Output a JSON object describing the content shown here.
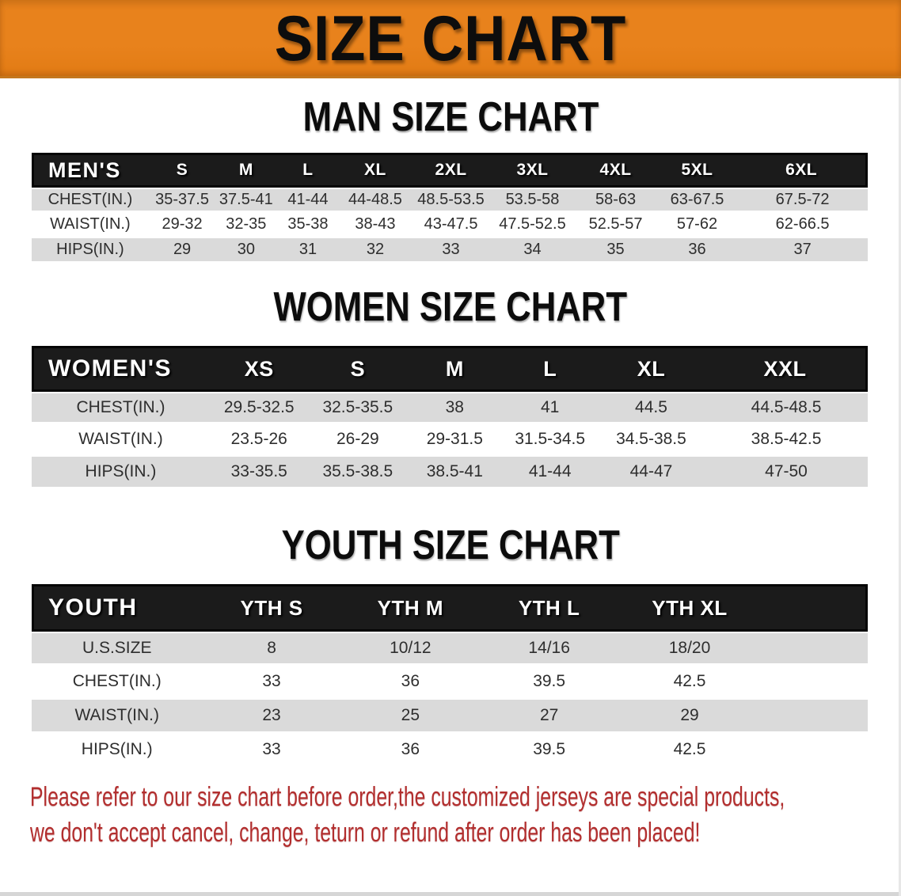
{
  "banner": {
    "title": "SIZE CHART"
  },
  "sections": [
    {
      "id": "men",
      "heading": "MAN SIZE CHART",
      "corner_label": "MEN'S",
      "sizes": [
        "S",
        "M",
        "L",
        "XL",
        "2XL",
        "3XL",
        "4XL",
        "5XL",
        "6XL"
      ],
      "rows": [
        {
          "label": "CHEST(IN.)",
          "values": [
            "35-37.5",
            "37.5-41",
            "41-44",
            "44-48.5",
            "48.5-53.5",
            "53.5-58",
            "58-63",
            "63-67.5",
            "67.5-72"
          ]
        },
        {
          "label": "WAIST(IN.)",
          "values": [
            "29-32",
            "32-35",
            "35-38",
            "38-43",
            "43-47.5",
            "47.5-52.5",
            "52.5-57",
            "57-62",
            "62-66.5"
          ]
        },
        {
          "label": "HIPS(IN.)",
          "values": [
            "29",
            "30",
            "31",
            "32",
            "33",
            "34",
            "35",
            "36",
            "37"
          ]
        }
      ]
    },
    {
      "id": "women",
      "heading": "WOMEN SIZE CHART",
      "corner_label": "WOMEN'S",
      "sizes": [
        "XS",
        "S",
        "M",
        "L",
        "XL",
        "XXL"
      ],
      "rows": [
        {
          "label": "CHEST(IN.)",
          "values": [
            "29.5-32.5",
            "32.5-35.5",
            "38",
            "41",
            "44.5",
            "44.5-48.5"
          ]
        },
        {
          "label": "WAIST(IN.)",
          "values": [
            "23.5-26",
            "26-29",
            "29-31.5",
            "31.5-34.5",
            "34.5-38.5",
            "38.5-42.5"
          ]
        },
        {
          "label": "HIPS(IN.)",
          "values": [
            "33-35.5",
            "35.5-38.5",
            "38.5-41",
            "41-44",
            "44-47",
            "47-50"
          ]
        }
      ]
    },
    {
      "id": "youth",
      "heading": "YOUTH SIZE CHART",
      "corner_label": "YOUTH",
      "sizes": [
        "YTH S",
        "YTH M",
        "YTH L",
        "YTH XL"
      ],
      "rows": [
        {
          "label": "U.S.SIZE",
          "values": [
            "8",
            "10/12",
            "14/16",
            "18/20"
          ]
        },
        {
          "label": "CHEST(IN.)",
          "values": [
            "33",
            "36",
            "39.5",
            "42.5"
          ]
        },
        {
          "label": "WAIST(IN.)",
          "values": [
            "23",
            "25",
            "27",
            "29"
          ]
        },
        {
          "label": "HIPS(IN.)",
          "values": [
            "33",
            "36",
            "39.5",
            "42.5"
          ]
        }
      ]
    }
  ],
  "disclaimer": {
    "line1": "Please refer to our size chart before order,the customized jerseys are special products,",
    "line2": "we don't accept cancel, change, teturn or refund after order has been placed!"
  },
  "palette": {
    "banner_bg": "#E8821C",
    "banner_border": "#C4771D",
    "banner_text": "#0D0D0D",
    "header_bar_bg": "#1B1B1B",
    "header_bar_text": "#FFFFFF",
    "row_stripe": "#DADADA",
    "table_text": "#2E2E2E",
    "disclaimer_red": "#B22E2E"
  }
}
